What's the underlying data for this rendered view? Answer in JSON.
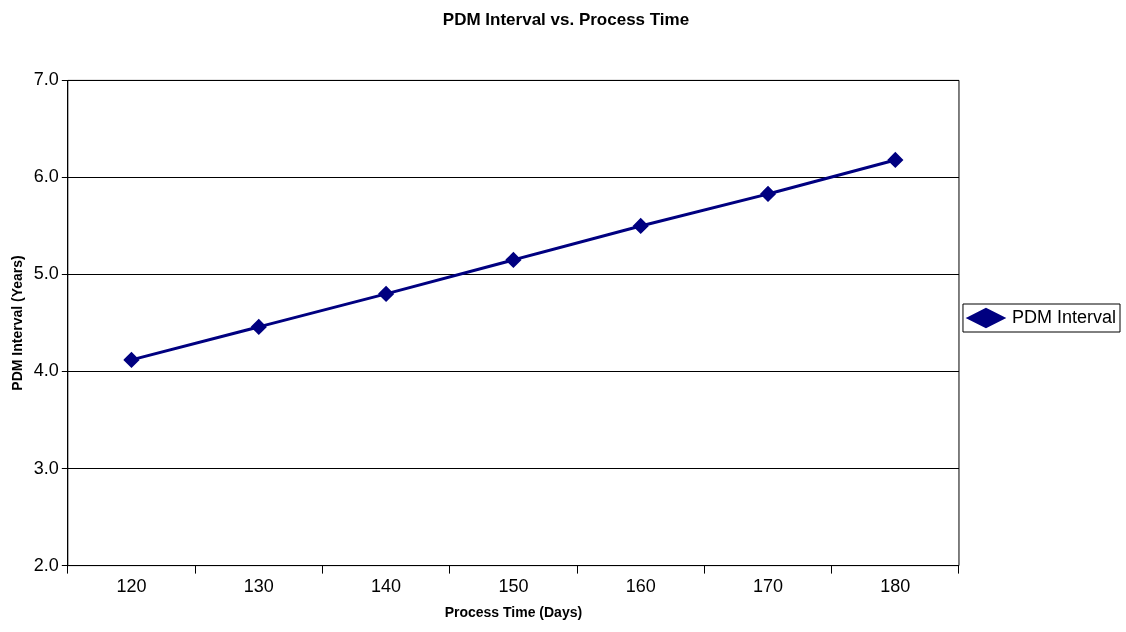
{
  "chart_data": {
    "type": "line",
    "title": "PDM Interval vs. Process Time",
    "xlabel": "Process Time (Days)",
    "ylabel": "PDM Interval (Years)",
    "categories": [
      "120",
      "130",
      "140",
      "150",
      "160",
      "170",
      "180"
    ],
    "series": [
      {
        "name": "PDM Interval",
        "color": "#000080",
        "values": [
          4.12,
          4.46,
          4.8,
          5.15,
          5.5,
          5.83,
          6.18
        ]
      }
    ],
    "ylim": [
      2,
      7
    ],
    "yticks": [
      {
        "value": 2,
        "label": "2.0"
      },
      {
        "value": 3,
        "label": "3.0"
      },
      {
        "value": 4,
        "label": "4.0"
      },
      {
        "value": 5,
        "label": "5.0"
      },
      {
        "value": 6,
        "label": "6.0"
      },
      {
        "value": 7,
        "label": "7.0"
      }
    ],
    "grid": "y",
    "legend": "right",
    "marker": "diamond",
    "line_style": "solid"
  }
}
